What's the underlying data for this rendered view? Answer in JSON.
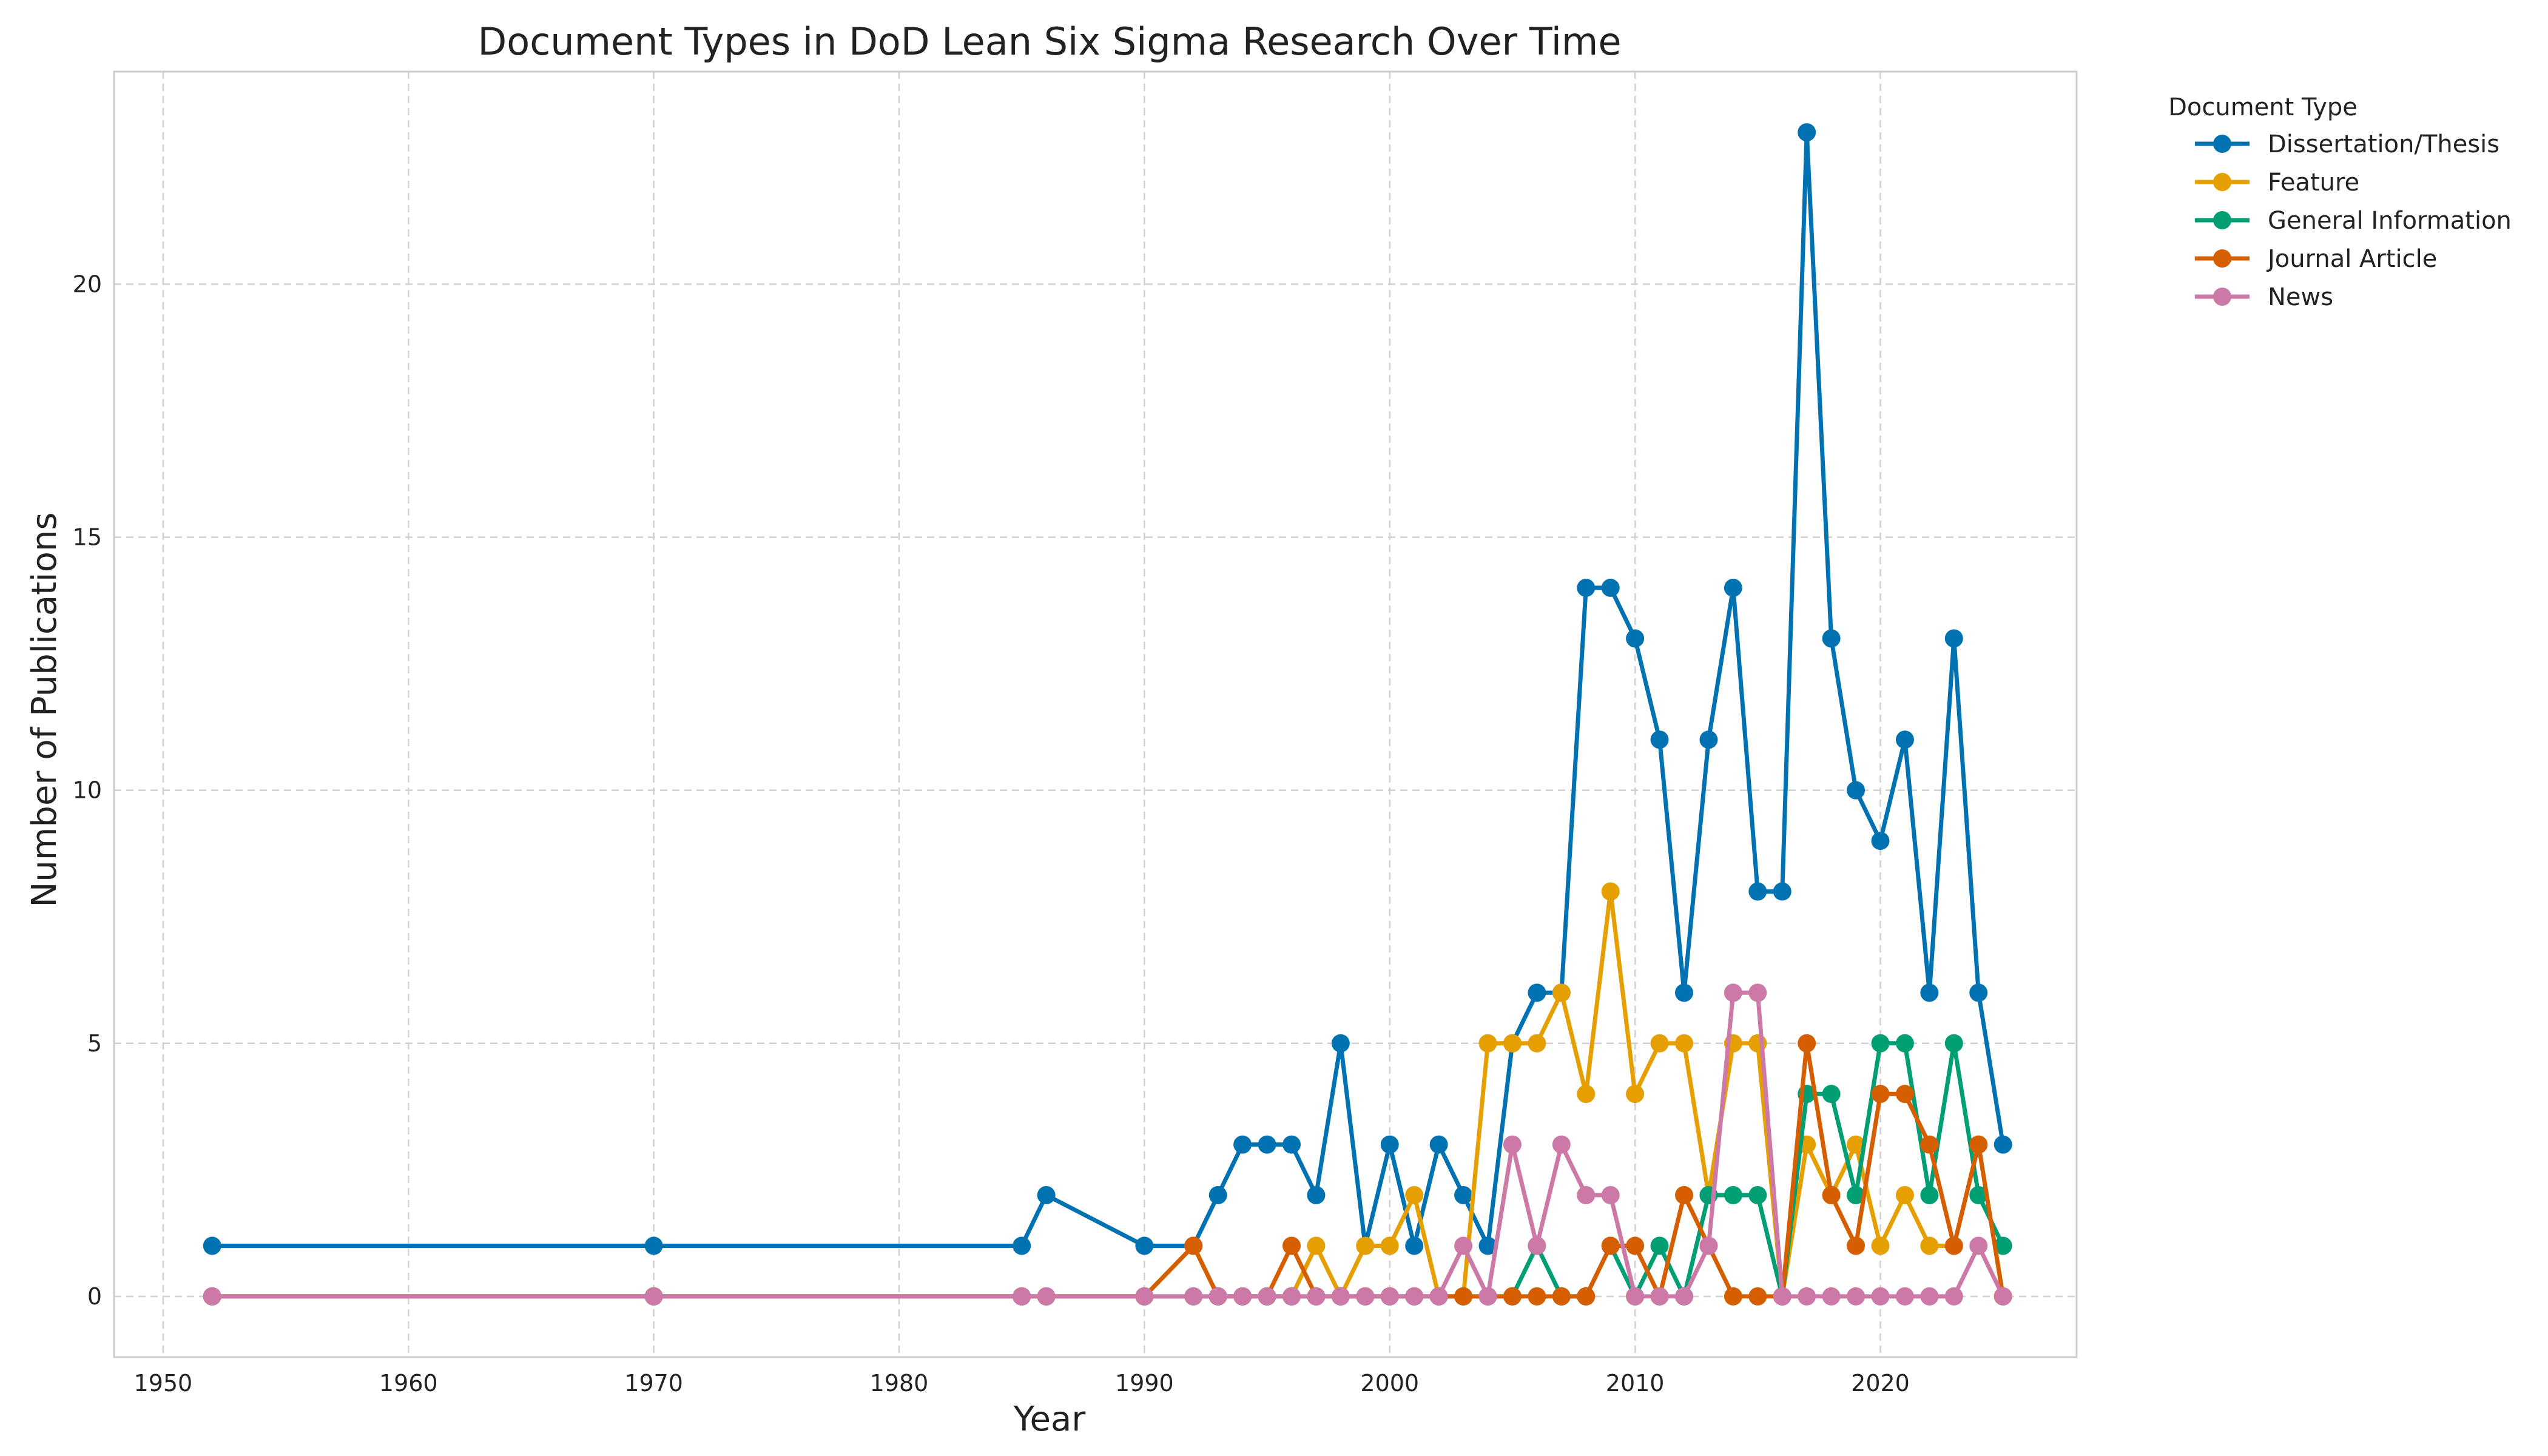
{
  "chart_data": {
    "type": "line",
    "title": "Document Types in DoD Lean Six Sigma Research Over Time",
    "xlabel": "Year",
    "ylabel": "Number of Publications",
    "xlim": [
      1948,
      2028
    ],
    "ylim": [
      -1.2,
      24.2
    ],
    "xticks": [
      1950,
      1960,
      1970,
      1980,
      1990,
      2000,
      2010,
      2020
    ],
    "yticks": [
      0,
      5,
      10,
      15,
      20
    ],
    "grid": true,
    "legend": {
      "title": "Document Type",
      "placement": "outside-top-right"
    },
    "x": [
      1952,
      1970,
      1985,
      1986,
      1990,
      1992,
      1993,
      1994,
      1995,
      1996,
      1997,
      1998,
      1999,
      2000,
      2001,
      2002,
      2003,
      2004,
      2005,
      2006,
      2007,
      2008,
      2009,
      2010,
      2011,
      2012,
      2013,
      2014,
      2015,
      2016,
      2017,
      2018,
      2019,
      2020,
      2021,
      2022,
      2023,
      2024,
      2025
    ],
    "series": [
      {
        "name": "Dissertation/Thesis",
        "color": "#0072B2",
        "values": [
          1,
          1,
          1,
          2,
          1,
          1,
          2,
          3,
          3,
          3,
          2,
          5,
          1,
          3,
          1,
          3,
          2,
          1,
          5,
          6,
          6,
          14,
          14,
          13,
          11,
          6,
          11,
          14,
          8,
          8,
          23,
          13,
          10,
          9,
          11,
          6,
          13,
          6,
          3
        ]
      },
      {
        "name": "Feature",
        "color": "#E69F00",
        "values": [
          0,
          0,
          0,
          0,
          0,
          1,
          0,
          0,
          0,
          0,
          1,
          0,
          1,
          1,
          2,
          0,
          0,
          5,
          5,
          5,
          6,
          4,
          8,
          4,
          5,
          5,
          2,
          5,
          5,
          0,
          3,
          2,
          3,
          1,
          2,
          1,
          1,
          3,
          0
        ]
      },
      {
        "name": "General Information",
        "color": "#009E73",
        "values": [
          0,
          0,
          0,
          0,
          0,
          0,
          0,
          0,
          0,
          0,
          0,
          0,
          0,
          0,
          0,
          0,
          0,
          0,
          0,
          1,
          0,
          0,
          1,
          0,
          1,
          0,
          2,
          2,
          2,
          0,
          4,
          4,
          2,
          5,
          5,
          2,
          5,
          2,
          1
        ]
      },
      {
        "name": "Journal Article",
        "color": "#D55E00",
        "values": [
          0,
          0,
          0,
          0,
          0,
          1,
          0,
          0,
          0,
          1,
          0,
          0,
          0,
          0,
          0,
          0,
          0,
          0,
          0,
          0,
          0,
          0,
          1,
          1,
          0,
          2,
          1,
          0,
          0,
          0,
          5,
          2,
          1,
          4,
          4,
          3,
          1,
          3,
          0
        ]
      },
      {
        "name": "News",
        "color": "#CC79A7",
        "values": [
          0,
          0,
          0,
          0,
          0,
          0,
          0,
          0,
          0,
          0,
          0,
          0,
          0,
          0,
          0,
          0,
          1,
          0,
          3,
          1,
          3,
          2,
          2,
          0,
          0,
          0,
          1,
          6,
          6,
          0,
          0,
          0,
          0,
          0,
          0,
          0,
          0,
          1,
          0
        ]
      }
    ]
  }
}
